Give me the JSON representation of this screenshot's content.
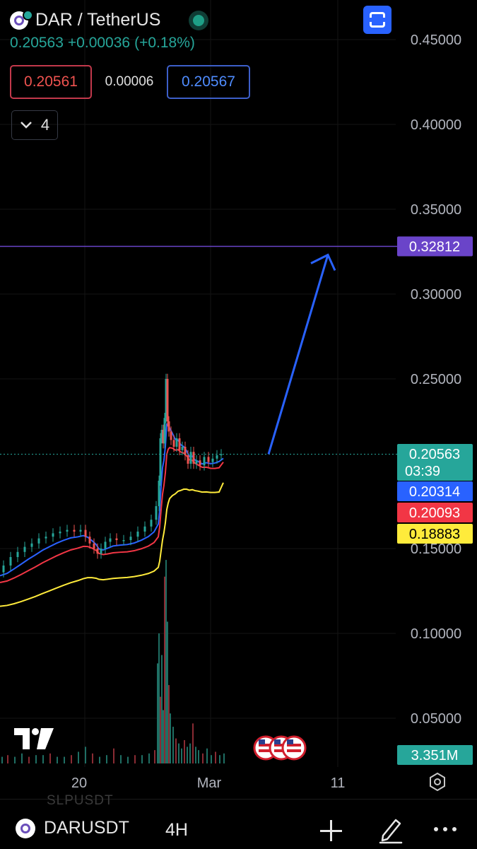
{
  "header": {
    "symbol": "DAR / TetherUS",
    "price": "0.20563",
    "change": "+0.00036",
    "change_pct": "(+0.18%)",
    "bid": "0.20561",
    "spread": "0.00006",
    "ask": "0.20567",
    "indicators_count": "4",
    "live_dot_color": "#26a69a"
  },
  "bottom_bar": {
    "ghost_symbol": "SLPUSDT",
    "symbol": "DARUSDT",
    "timeframe": "4H",
    "icons": [
      "add-icon",
      "drawing-pen-icon",
      "more-icon"
    ]
  },
  "chart_data": {
    "type": "candlestick",
    "symbol": "DARUSDT",
    "timeframe": "4H",
    "y_axis": {
      "ticks": [
        "0.45000",
        "0.40000",
        "0.35000",
        "0.30000",
        "0.25000",
        "0.15000",
        "0.10000",
        "0.05000"
      ],
      "range": [
        0.0,
        0.47
      ]
    },
    "x_axis": {
      "ticks": [
        "20",
        "Mar",
        "11"
      ]
    },
    "price_labels": [
      {
        "value": "0.32812",
        "color": "#6a44c9"
      },
      {
        "value": "0.20563",
        "sub": "03:39",
        "color": "#26a69a"
      },
      {
        "value": "0.20314",
        "color": "#2962ff"
      },
      {
        "value": "0.20093",
        "color": "#f23645"
      },
      {
        "value": "0.18883",
        "color": "#ffeb3b"
      }
    ],
    "volume_label": {
      "value": "3.351M",
      "color": "#26a69a"
    },
    "horizontal_line": {
      "value": 0.32812,
      "color": "#6a44c9"
    },
    "current_price_line": 0.20563,
    "arrow_annotation": {
      "from_price": 0.20563,
      "to_price": 0.32812,
      "color": "#2962ff"
    },
    "moving_averages": [
      {
        "value": 0.20314,
        "color": "#2962ff"
      },
      {
        "value": 0.20093,
        "color": "#f23645"
      },
      {
        "value": 0.18883,
        "color": "#ffeb3b"
      }
    ],
    "price_path": [
      [
        0,
        0.136
      ],
      [
        10,
        0.14
      ],
      [
        20,
        0.145
      ],
      [
        30,
        0.148
      ],
      [
        40,
        0.151
      ],
      [
        50,
        0.153
      ],
      [
        60,
        0.156
      ],
      [
        70,
        0.157
      ],
      [
        80,
        0.159
      ],
      [
        90,
        0.16
      ],
      [
        100,
        0.161
      ],
      [
        110,
        0.16
      ],
      [
        118,
        0.161
      ],
      [
        124,
        0.157
      ],
      [
        130,
        0.153
      ],
      [
        136,
        0.15
      ],
      [
        140,
        0.147
      ],
      [
        146,
        0.15
      ],
      [
        152,
        0.154
      ],
      [
        160,
        0.156
      ],
      [
        170,
        0.155
      ],
      [
        180,
        0.155
      ],
      [
        190,
        0.157
      ],
      [
        200,
        0.16
      ],
      [
        210,
        0.163
      ],
      [
        218,
        0.167
      ],
      [
        224,
        0.175
      ],
      [
        226,
        0.19
      ],
      [
        228,
        0.215
      ],
      [
        230,
        0.22
      ],
      [
        232,
        0.212
      ],
      [
        234,
        0.227
      ],
      [
        236,
        0.25
      ],
      [
        238,
        0.225
      ],
      [
        240,
        0.219
      ],
      [
        244,
        0.214
      ],
      [
        248,
        0.21
      ],
      [
        252,
        0.215
      ],
      [
        256,
        0.208
      ],
      [
        260,
        0.21
      ],
      [
        264,
        0.205
      ],
      [
        268,
        0.2
      ],
      [
        272,
        0.207
      ],
      [
        276,
        0.2
      ],
      [
        280,
        0.202
      ],
      [
        286,
        0.199
      ],
      [
        292,
        0.204
      ],
      [
        298,
        0.201
      ],
      [
        304,
        0.203
      ],
      [
        310,
        0.205
      ],
      [
        316,
        0.2056
      ]
    ],
    "volumes": [
      [
        2,
        0.004
      ],
      [
        10,
        0.005
      ],
      [
        20,
        0.004
      ],
      [
        30,
        0.006
      ],
      [
        40,
        0.004
      ],
      [
        50,
        0.005
      ],
      [
        60,
        0.005
      ],
      [
        70,
        0.006
      ],
      [
        80,
        0.004
      ],
      [
        90,
        0.004
      ],
      [
        100,
        0.005
      ],
      [
        110,
        0.007
      ],
      [
        120,
        0.01
      ],
      [
        130,
        0.006
      ],
      [
        140,
        0.004
      ],
      [
        150,
        0.005
      ],
      [
        160,
        0.009
      ],
      [
        170,
        0.005
      ],
      [
        180,
        0.004
      ],
      [
        190,
        0.005
      ],
      [
        200,
        0.005
      ],
      [
        210,
        0.006
      ],
      [
        218,
        0.008
      ],
      [
        222,
        0.06
      ],
      [
        224,
        0.078
      ],
      [
        226,
        0.04
      ],
      [
        228,
        0.065
      ],
      [
        230,
        0.032
      ],
      [
        232,
        0.112
      ],
      [
        234,
        0.122
      ],
      [
        236,
        0.085
      ],
      [
        238,
        0.047
      ],
      [
        240,
        0.03
      ],
      [
        244,
        0.022
      ],
      [
        248,
        0.015
      ],
      [
        252,
        0.012
      ],
      [
        256,
        0.009
      ],
      [
        260,
        0.014
      ],
      [
        264,
        0.01
      ],
      [
        268,
        0.012
      ],
      [
        272,
        0.024
      ],
      [
        276,
        0.01
      ],
      [
        280,
        0.008
      ],
      [
        286,
        0.006
      ],
      [
        292,
        0.009
      ],
      [
        298,
        0.005
      ],
      [
        304,
        0.007
      ],
      [
        310,
        0.005
      ],
      [
        316,
        0.006
      ]
    ]
  }
}
